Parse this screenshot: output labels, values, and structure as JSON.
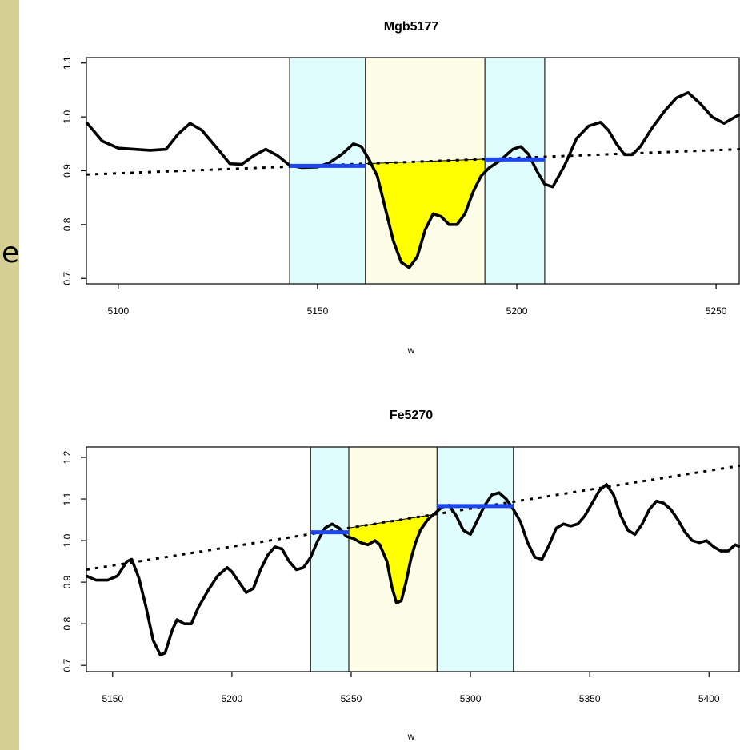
{
  "page": {
    "edge_text": "e"
  },
  "chart_data": [
    {
      "type": "line",
      "title": "Mgb5177",
      "xlabel": "w",
      "ylabel": "",
      "xlim": [
        5092,
        5256
      ],
      "ylim": [
        0.69,
        1.11
      ],
      "xticks": [
        5100,
        5150,
        5200,
        5250
      ],
      "yticks": [
        0.7,
        0.8,
        0.9,
        1.0,
        1.1
      ],
      "xtick_labels": [
        "5100",
        "5150",
        "5200",
        "5250"
      ],
      "ytick_labels": [
        "0.7",
        "0.8",
        "0.9",
        "1.0",
        "1.1"
      ],
      "sidebands": [
        [
          5143,
          5162
        ],
        [
          5192,
          5207
        ]
      ],
      "band": [
        5162,
        5192
      ],
      "continuum": [
        [
          5092,
          0.893
        ],
        [
          5256,
          0.94
        ]
      ],
      "sideband_means": [
        {
          "x": [
            5143,
            5162
          ],
          "y": 0.909
        },
        {
          "x": [
            5192,
            5207
          ],
          "y": 0.921
        }
      ],
      "spectrum": [
        [
          5092,
          0.99
        ],
        [
          5096,
          0.955
        ],
        [
          5100,
          0.942
        ],
        [
          5104,
          0.94
        ],
        [
          5108,
          0.938
        ],
        [
          5112,
          0.94
        ],
        [
          5115,
          0.968
        ],
        [
          5118,
          0.988
        ],
        [
          5121,
          0.975
        ],
        [
          5125,
          0.94
        ],
        [
          5128,
          0.913
        ],
        [
          5131,
          0.912
        ],
        [
          5134,
          0.928
        ],
        [
          5137,
          0.94
        ],
        [
          5140,
          0.928
        ],
        [
          5143,
          0.91
        ],
        [
          5146,
          0.906
        ],
        [
          5150,
          0.907
        ],
        [
          5153,
          0.915
        ],
        [
          5156,
          0.93
        ],
        [
          5159,
          0.95
        ],
        [
          5161,
          0.945
        ],
        [
          5163,
          0.92
        ],
        [
          5165,
          0.89
        ],
        [
          5167,
          0.83
        ],
        [
          5169,
          0.77
        ],
        [
          5171,
          0.73
        ],
        [
          5173,
          0.72
        ],
        [
          5175,
          0.74
        ],
        [
          5177,
          0.79
        ],
        [
          5179,
          0.82
        ],
        [
          5181,
          0.815
        ],
        [
          5183,
          0.8
        ],
        [
          5185,
          0.8
        ],
        [
          5187,
          0.82
        ],
        [
          5189,
          0.86
        ],
        [
          5191,
          0.89
        ],
        [
          5193,
          0.905
        ],
        [
          5196,
          0.92
        ],
        [
          5199,
          0.94
        ],
        [
          5201,
          0.945
        ],
        [
          5203,
          0.93
        ],
        [
          5205,
          0.9
        ],
        [
          5207,
          0.875
        ],
        [
          5209,
          0.87
        ],
        [
          5212,
          0.91
        ],
        [
          5215,
          0.96
        ],
        [
          5218,
          0.983
        ],
        [
          5221,
          0.99
        ],
        [
          5223,
          0.975
        ],
        [
          5225,
          0.95
        ],
        [
          5227,
          0.93
        ],
        [
          5229,
          0.93
        ],
        [
          5231,
          0.945
        ],
        [
          5234,
          0.98
        ],
        [
          5237,
          1.01
        ],
        [
          5240,
          1.035
        ],
        [
          5243,
          1.045
        ],
        [
          5246,
          1.025
        ],
        [
          5249,
          1.0
        ],
        [
          5252,
          0.988
        ],
        [
          5256,
          1.005
        ]
      ],
      "absorption_fill_color": "#ffff00",
      "sideband_color": "#e0fdfe",
      "band_color": "#fefde8",
      "mean_line_color": "#1e46f0"
    },
    {
      "type": "line",
      "title": "Fe5270",
      "xlabel": "w",
      "ylabel": "",
      "xlim": [
        5139,
        5413
      ],
      "ylim": [
        0.685,
        1.225
      ],
      "xticks": [
        5150,
        5200,
        5250,
        5300,
        5350,
        5400
      ],
      "yticks": [
        0.7,
        0.8,
        0.9,
        1.0,
        1.1,
        1.2
      ],
      "xtick_labels": [
        "5150",
        "5200",
        "5250",
        "5300",
        "5350",
        "5400"
      ],
      "ytick_labels": [
        "0.7",
        "0.8",
        "0.9",
        "1.0",
        "1.1",
        "1.2"
      ],
      "sidebands": [
        [
          5233,
          5249
        ],
        [
          5286,
          5318
        ]
      ],
      "band": [
        5249,
        5286
      ],
      "continuum": [
        [
          5139,
          0.93
        ],
        [
          5413,
          1.18
        ]
      ],
      "sideband_means": [
        {
          "x": [
            5233,
            5249
          ],
          "y": 1.02
        },
        {
          "x": [
            5286,
            5318
          ],
          "y": 1.083
        }
      ],
      "spectrum": [
        [
          5139,
          0.915
        ],
        [
          5143,
          0.905
        ],
        [
          5148,
          0.905
        ],
        [
          5152,
          0.915
        ],
        [
          5156,
          0.95
        ],
        [
          5158,
          0.955
        ],
        [
          5161,
          0.91
        ],
        [
          5164,
          0.84
        ],
        [
          5167,
          0.76
        ],
        [
          5170,
          0.725
        ],
        [
          5172,
          0.73
        ],
        [
          5175,
          0.785
        ],
        [
          5177,
          0.81
        ],
        [
          5180,
          0.8
        ],
        [
          5183,
          0.8
        ],
        [
          5186,
          0.84
        ],
        [
          5190,
          0.88
        ],
        [
          5194,
          0.915
        ],
        [
          5198,
          0.935
        ],
        [
          5200,
          0.925
        ],
        [
          5203,
          0.9
        ],
        [
          5206,
          0.875
        ],
        [
          5209,
          0.885
        ],
        [
          5212,
          0.93
        ],
        [
          5215,
          0.965
        ],
        [
          5218,
          0.985
        ],
        [
          5221,
          0.98
        ],
        [
          5224,
          0.95
        ],
        [
          5227,
          0.93
        ],
        [
          5230,
          0.935
        ],
        [
          5233,
          0.96
        ],
        [
          5236,
          1.0
        ],
        [
          5239,
          1.03
        ],
        [
          5242,
          1.04
        ],
        [
          5245,
          1.03
        ],
        [
          5248,
          1.01
        ],
        [
          5251,
          1.005
        ],
        [
          5254,
          0.995
        ],
        [
          5257,
          0.99
        ],
        [
          5260,
          1.0
        ],
        [
          5262,
          0.99
        ],
        [
          5265,
          0.95
        ],
        [
          5267,
          0.89
        ],
        [
          5269,
          0.85
        ],
        [
          5271,
          0.855
        ],
        [
          5273,
          0.9
        ],
        [
          5275,
          0.955
        ],
        [
          5277,
          0.995
        ],
        [
          5279,
          1.025
        ],
        [
          5282,
          1.05
        ],
        [
          5285,
          1.065
        ],
        [
          5288,
          1.08
        ],
        [
          5291,
          1.085
        ],
        [
          5294,
          1.06
        ],
        [
          5297,
          1.025
        ],
        [
          5300,
          1.015
        ],
        [
          5303,
          1.05
        ],
        [
          5306,
          1.085
        ],
        [
          5309,
          1.11
        ],
        [
          5312,
          1.115
        ],
        [
          5315,
          1.1
        ],
        [
          5318,
          1.075
        ],
        [
          5321,
          1.045
        ],
        [
          5324,
          0.995
        ],
        [
          5327,
          0.96
        ],
        [
          5330,
          0.955
        ],
        [
          5333,
          0.99
        ],
        [
          5336,
          1.03
        ],
        [
          5339,
          1.04
        ],
        [
          5342,
          1.035
        ],
        [
          5345,
          1.04
        ],
        [
          5348,
          1.06
        ],
        [
          5351,
          1.09
        ],
        [
          5354,
          1.12
        ],
        [
          5357,
          1.135
        ],
        [
          5360,
          1.11
        ],
        [
          5363,
          1.06
        ],
        [
          5366,
          1.025
        ],
        [
          5369,
          1.015
        ],
        [
          5372,
          1.04
        ],
        [
          5375,
          1.075
        ],
        [
          5378,
          1.095
        ],
        [
          5381,
          1.09
        ],
        [
          5384,
          1.075
        ],
        [
          5387,
          1.05
        ],
        [
          5390,
          1.02
        ],
        [
          5393,
          1.0
        ],
        [
          5396,
          0.995
        ],
        [
          5399,
          1.0
        ],
        [
          5402,
          0.985
        ],
        [
          5405,
          0.975
        ],
        [
          5408,
          0.975
        ],
        [
          5411,
          0.99
        ],
        [
          5413,
          0.985
        ]
      ],
      "absorption_fill_color": "#ffff00",
      "sideband_color": "#e0fdfe",
      "band_color": "#fefde8",
      "mean_line_color": "#1e46f0"
    }
  ]
}
